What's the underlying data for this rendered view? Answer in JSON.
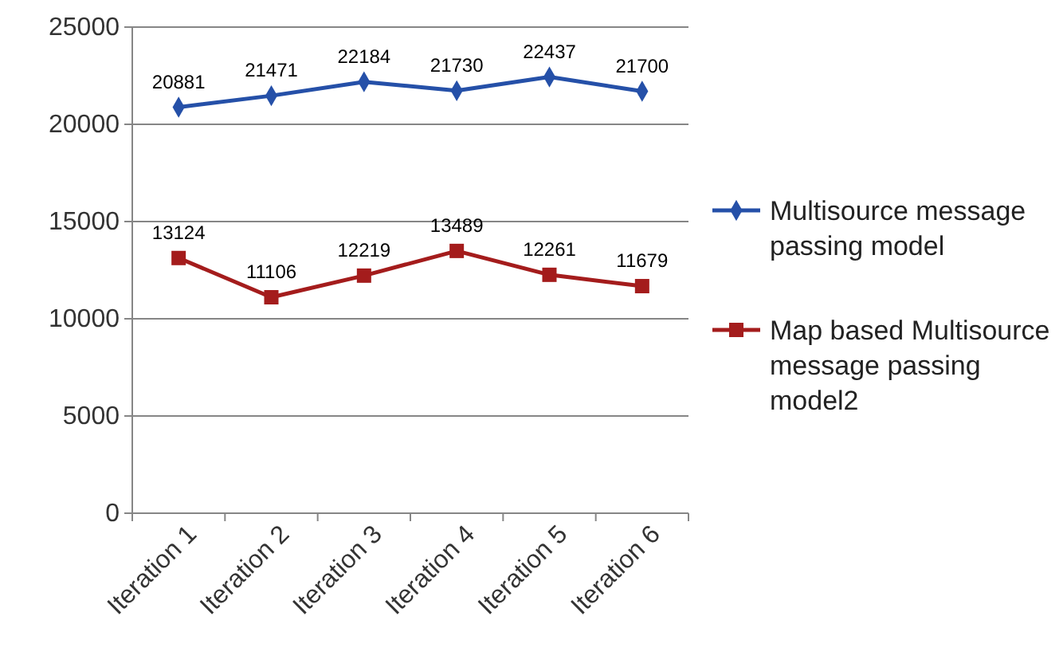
{
  "chart_data": {
    "type": "line",
    "categories": [
      "Iteration 1",
      "Iteration 2",
      "Iteration 3",
      "Iteration 4",
      "Iteration 5",
      "Iteration 6"
    ],
    "series": [
      {
        "name": "Multisource message passing model",
        "color": "#2550a8",
        "marker": "diamond",
        "values": [
          20881,
          21471,
          22184,
          21730,
          22437,
          21700
        ]
      },
      {
        "name": "Map based Multisource message passing model2",
        "color": "#a41c1c",
        "marker": "square",
        "values": [
          13124,
          11106,
          12219,
          13489,
          12261,
          11679
        ]
      }
    ],
    "ylim": [
      0,
      25000
    ],
    "yticks": [
      0,
      5000,
      10000,
      15000,
      20000,
      25000
    ],
    "grid": "y",
    "legend": "right",
    "data_labels": true
  }
}
